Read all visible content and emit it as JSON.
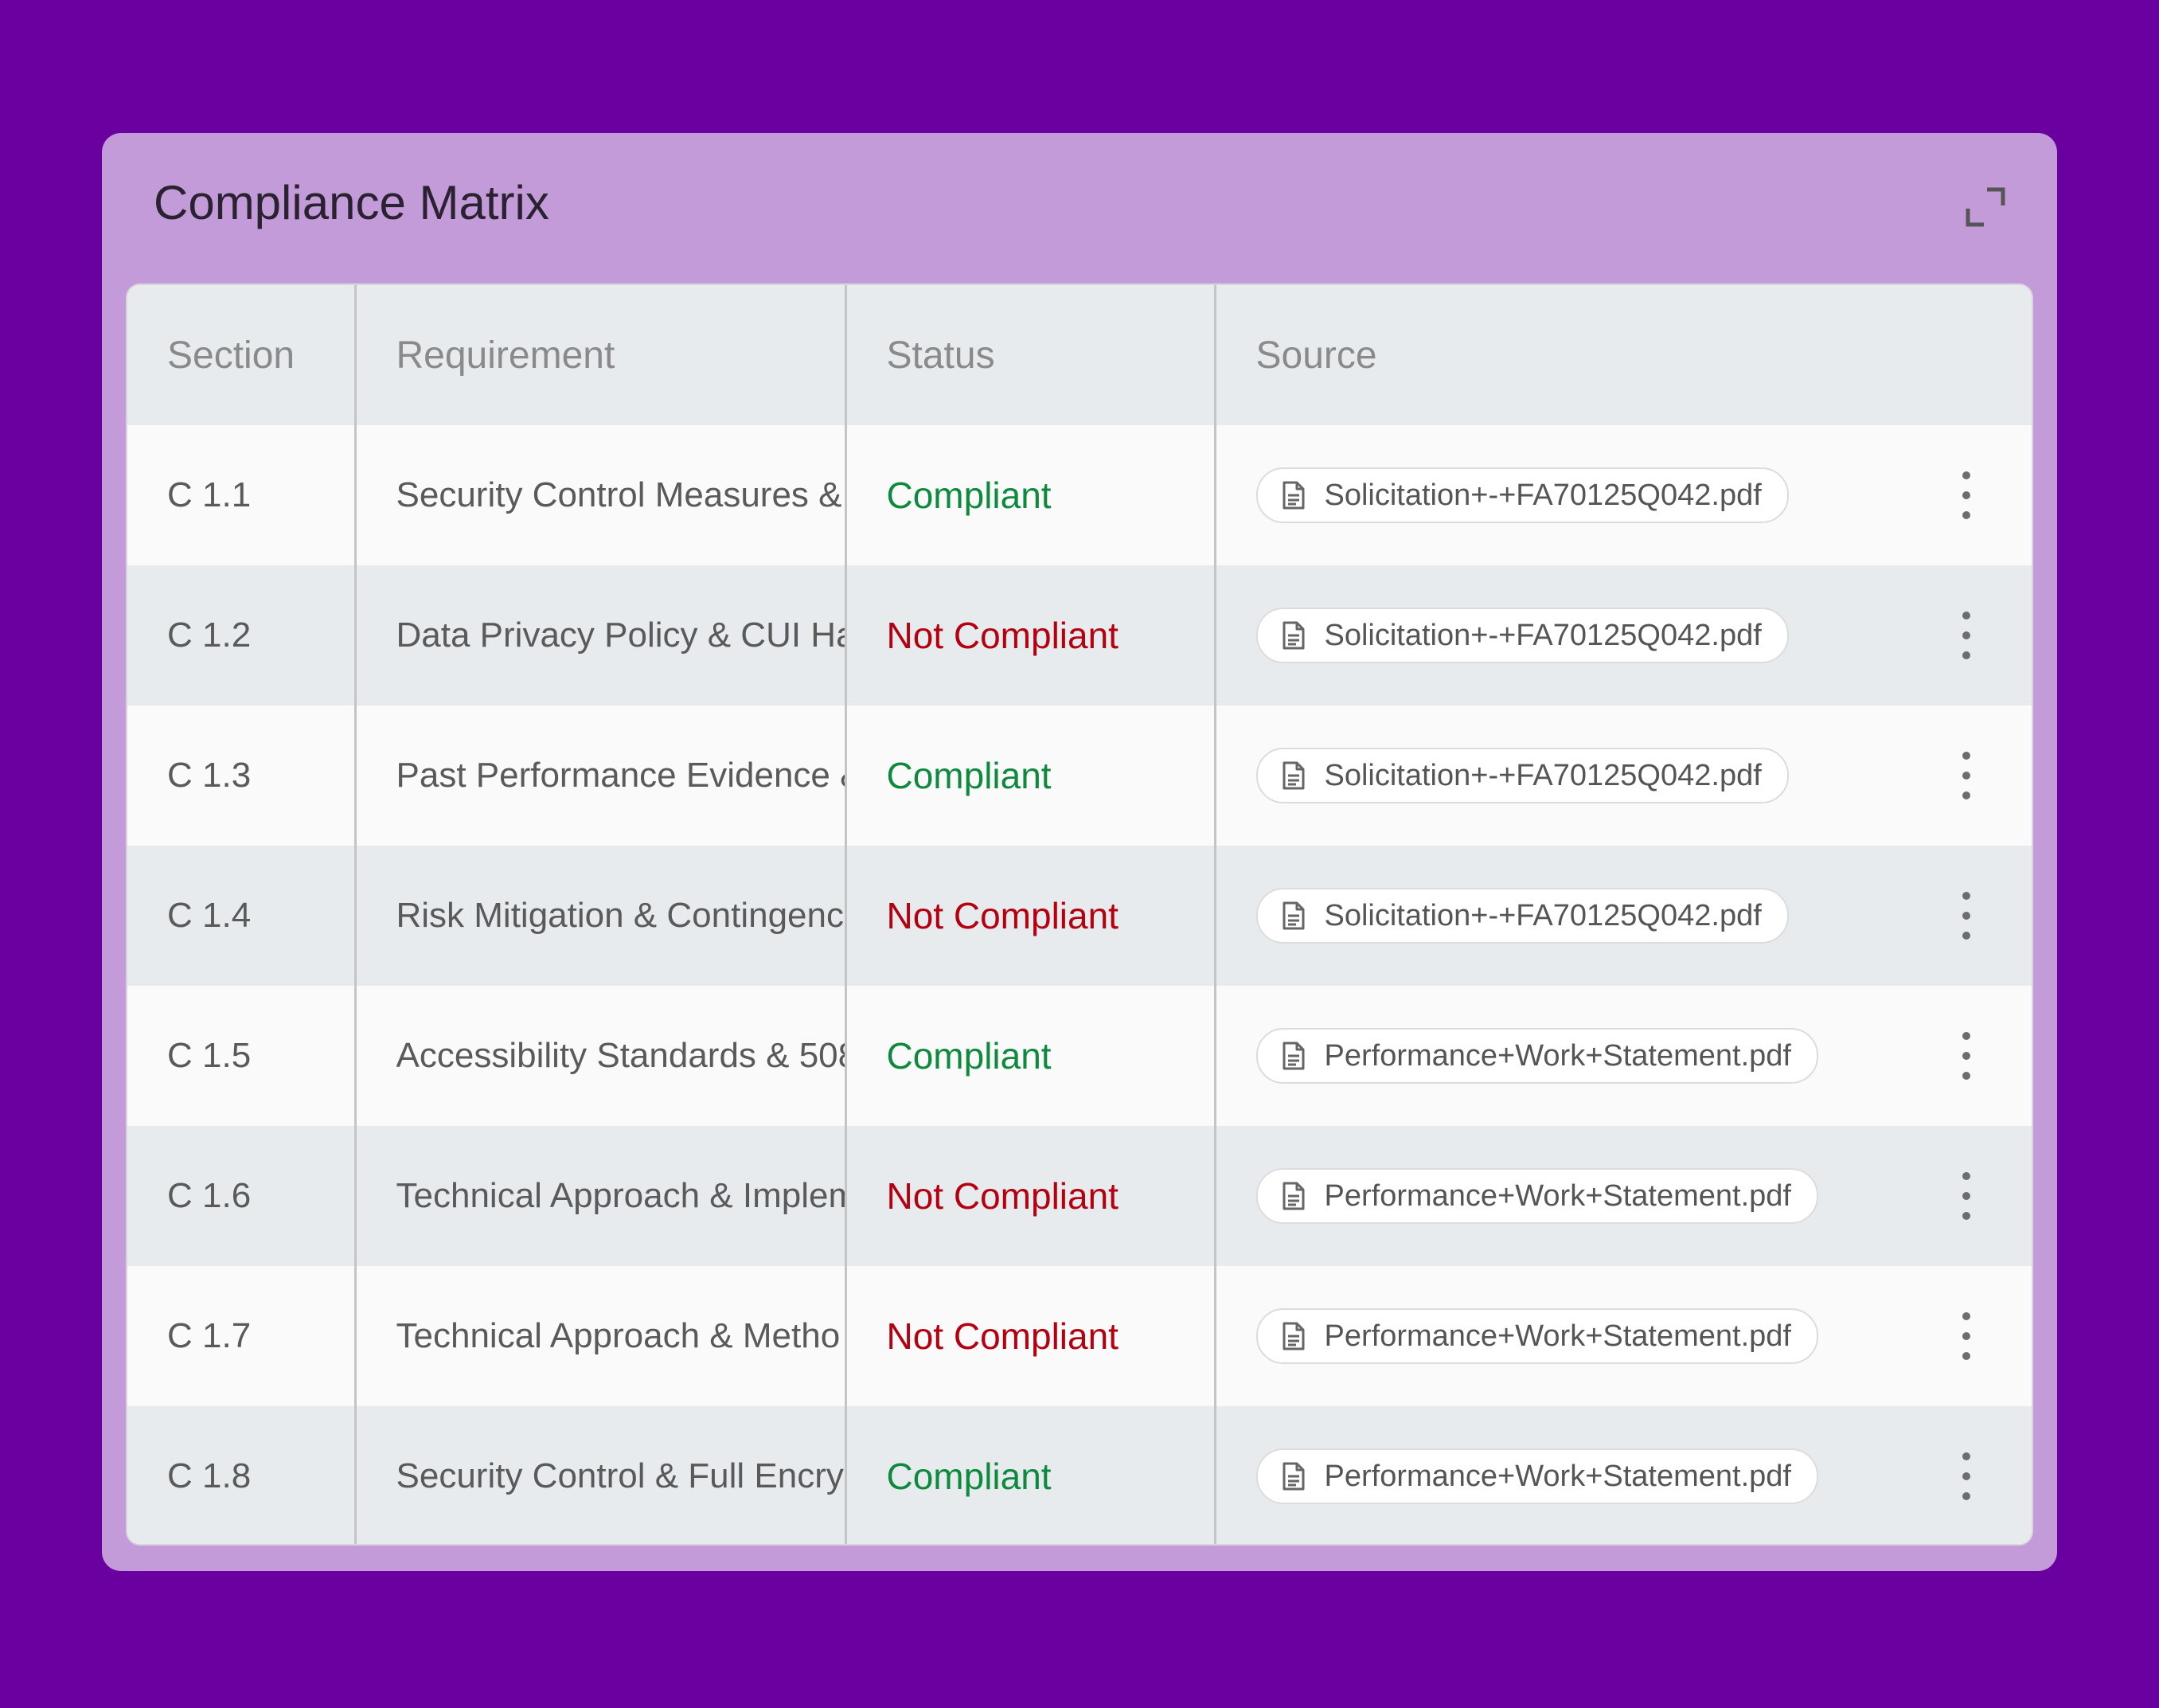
{
  "panel": {
    "title": "Compliance Matrix",
    "expand_icon": "expand-icon"
  },
  "table": {
    "headers": {
      "section": "Section",
      "requirement": "Requirement",
      "status": "Status",
      "source": "Source"
    },
    "rows": [
      {
        "section": "C 1.1",
        "requirement": "Security Control Measures &",
        "status": "Compliant",
        "source": "Solicitation+-+FA70125Q042.pdf"
      },
      {
        "section": "C 1.2",
        "requirement": "Data Privacy Policy & CUI Ha",
        "status": "Not Compliant",
        "source": "Solicitation+-+FA70125Q042.pdf"
      },
      {
        "section": "C 1.3",
        "requirement": "Past Performance Evidence &",
        "status": "Compliant",
        "source": "Solicitation+-+FA70125Q042.pdf"
      },
      {
        "section": "C 1.4",
        "requirement": "Risk Mitigation & Contingenc",
        "status": "Not Compliant",
        "source": "Solicitation+-+FA70125Q042.pdf"
      },
      {
        "section": "C 1.5",
        "requirement": "Accessibility Standards & 508",
        "status": "Compliant",
        "source": "Performance+Work+Statement.pdf"
      },
      {
        "section": "C 1.6",
        "requirement": "Technical Approach & Implem",
        "status": "Not Compliant",
        "source": "Performance+Work+Statement.pdf"
      },
      {
        "section": "C 1.7",
        "requirement": "Technical Approach & Metho",
        "status": "Not Compliant",
        "source": "Performance+Work+Statement.pdf"
      },
      {
        "section": "C 1.8",
        "requirement": "Security Control & Full Encry",
        "status": "Compliant",
        "source": "Performance+Work+Statement.pdf"
      }
    ]
  },
  "icons": {
    "source_file": "document-icon",
    "row_menu": "more-vertical-icon"
  },
  "colors": {
    "background": "#6b00a0",
    "panel": "#c39bd9",
    "compliant": "#0e8a3e",
    "not_compliant": "#b50010"
  }
}
